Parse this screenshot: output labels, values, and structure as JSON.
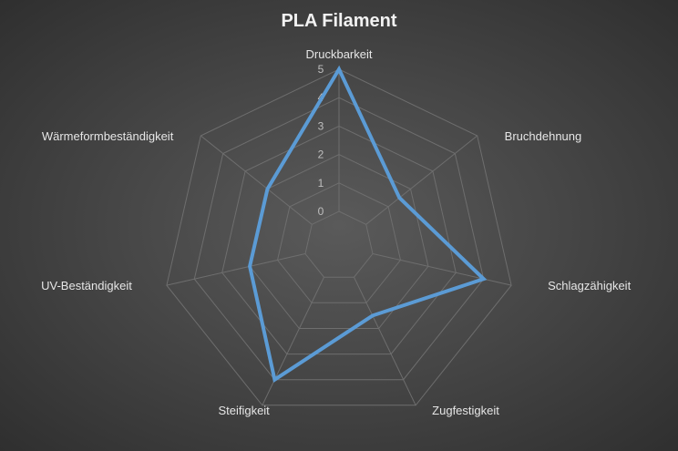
{
  "chart_data": {
    "type": "radar",
    "title": "PLA Filament",
    "categories": [
      "Druckbarkeit",
      "Bruchdehnung",
      "Schlagzähigkeit",
      "Zugfestigkeit",
      "Steifigkeit",
      "UV-Beständigkeit",
      "Wärmeformbeständigkeit"
    ],
    "series": [
      {
        "values": [
          5,
          1.5,
          4,
          1.5,
          4,
          2,
          2
        ]
      }
    ],
    "rlim": [
      0,
      5
    ],
    "ticks": [
      "0",
      "1",
      "2",
      "3",
      "4",
      "5"
    ],
    "grid": true,
    "legend": "none"
  },
  "colors": {
    "series": "#5b9bd5",
    "grid": "#6e6e6e"
  }
}
